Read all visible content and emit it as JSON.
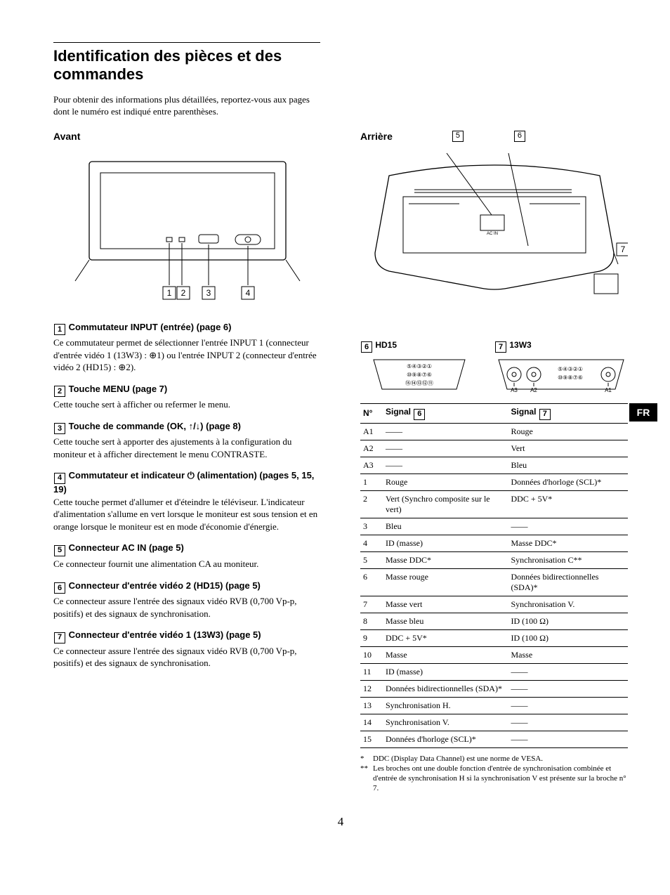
{
  "title": "Identification des pièces et des commandes",
  "intro": "Pour obtenir des informations plus détaillées, reportez-vous aux pages dont le numéro est indiqué entre parenthèses.",
  "front_label": "Avant",
  "rear_label": "Arrière",
  "rear_callout_a": "5",
  "rear_callout_b": "6",
  "rear_callout_c": "7",
  "side_tab": "FR",
  "page_number": "4",
  "items": [
    {
      "num": "1",
      "title": "Commutateur INPUT (entrée) (page 6)",
      "body": "Ce commutateur permet de sélectionner l'entrée INPUT 1 (connecteur d'entrée vidéo 1 (13W3) : ⊕1) ou l'entrée INPUT 2 (connecteur d'entrée vidéo 2 (HD15) : ⊕2)."
    },
    {
      "num": "2",
      "title": "Touche MENU (page 7)",
      "body": "Cette touche sert à afficher ou refermer le menu."
    },
    {
      "num": "3",
      "title": "Touche de commande (OK, ↑/↓) (page 8)",
      "body": "Cette touche sert à apporter des ajustements à la configuration du moniteur et à afficher directement le menu CONTRASTE."
    },
    {
      "num": "4",
      "title": "Commutateur et indicateur ⏻ (alimentation) (pages 5, 15, 19)",
      "body": "Cette touche permet d'allumer et d'éteindre le téléviseur. L'indicateur d'alimentation s'allume en vert lorsque le moniteur est sous tension et en orange lorsque le moniteur est en mode d'économie d'énergie."
    },
    {
      "num": "5",
      "title": "Connecteur AC IN (page 5)",
      "body": "Ce connecteur fournit une alimentation CA au moniteur."
    },
    {
      "num": "6",
      "title": "Connecteur d'entrée vidéo 2 (HD15) (page 5)",
      "body": "Ce connecteur assure l'entrée des signaux vidéo RVB (0,700 Vp-p, positifs) et des signaux de synchronisation."
    },
    {
      "num": "7",
      "title": "Connecteur d'entrée vidéo 1 (13W3) (page 5)",
      "body": "Ce connecteur assure l'entrée des signaux vidéo RVB (0,700 Vp-p, positifs) et des signaux de synchronisation."
    }
  ],
  "pin_blocks": [
    {
      "ref": "6",
      "label": "HD15"
    },
    {
      "ref": "7",
      "label": "13W3"
    }
  ],
  "table": {
    "head_num": "N°",
    "head_sig": "Signal",
    "col6_ref": "6",
    "col7_ref": "7",
    "rows": [
      {
        "n": "A1",
        "s6": "——",
        "s7": "Rouge"
      },
      {
        "n": "A2",
        "s6": "——",
        "s7": "Vert"
      },
      {
        "n": "A3",
        "s6": "——",
        "s7": "Bleu"
      },
      {
        "n": "1",
        "s6": "Rouge",
        "s7": "Données d'horloge (SCL)*"
      },
      {
        "n": "2",
        "s6": "Vert (Synchro composite sur le vert)",
        "s7": "DDC + 5V*"
      },
      {
        "n": "3",
        "s6": "Bleu",
        "s7": "——"
      },
      {
        "n": "4",
        "s6": "ID (masse)",
        "s7": "Masse DDC*"
      },
      {
        "n": "5",
        "s6": "Masse DDC*",
        "s7": "Synchronisation C**"
      },
      {
        "n": "6",
        "s6": "Masse rouge",
        "s7": "Données bidirectionnelles (SDA)*"
      },
      {
        "n": "7",
        "s6": "Masse vert",
        "s7": "Synchronisation V."
      },
      {
        "n": "8",
        "s6": "Masse bleu",
        "s7": "ID (100 Ω)"
      },
      {
        "n": "9",
        "s6": "DDC + 5V*",
        "s7": "ID (100 Ω)"
      },
      {
        "n": "10",
        "s6": "Masse",
        "s7": "Masse"
      },
      {
        "n": "11",
        "s6": "ID (masse)",
        "s7": "——"
      },
      {
        "n": "12",
        "s6": "Données bidirectionnelles (SDA)*",
        "s7": "——"
      },
      {
        "n": "13",
        "s6": "Synchronisation H.",
        "s7": "——"
      },
      {
        "n": "14",
        "s6": "Synchronisation V.",
        "s7": "——"
      },
      {
        "n": "15",
        "s6": "Données d'horloge (SCL)*",
        "s7": "——"
      }
    ]
  },
  "footnotes": [
    {
      "mark": "*",
      "text": "DDC (Display Data Channel) est une norme de VESA."
    },
    {
      "mark": "**",
      "text": "Les broches ont une double fonction d'entrée de synchronisation combinée et d'entrée de synchronisation H si la synchronisation V est présente sur la broche n° 7."
    }
  ]
}
